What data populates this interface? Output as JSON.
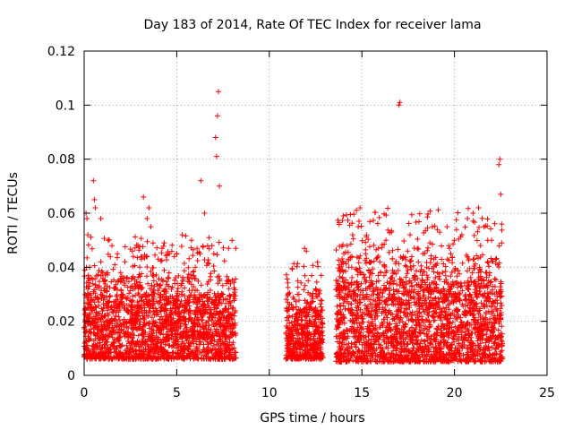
{
  "chart_data": {
    "type": "scatter",
    "title": "Day 183 of 2014, Rate Of TEC Index for receiver lama",
    "xlabel": "GPS time / hours",
    "ylabel": "ROTI / TECUs",
    "xlim": [
      0,
      25
    ],
    "ylim": [
      0,
      0.12
    ],
    "xticks": [
      0,
      5,
      10,
      15,
      20,
      25
    ],
    "xtick_labels": [
      "0",
      "5",
      "10",
      "15",
      "20",
      "25"
    ],
    "yticks": [
      0,
      0.02,
      0.04,
      0.06,
      0.08,
      0.1,
      0.12
    ],
    "ytick_labels": [
      "0",
      "0.02",
      "0.04",
      "0.06",
      "0.08",
      "0.1",
      "0.12"
    ],
    "grid": true,
    "marker": "+",
    "marker_color": "#ff0000",
    "data_segments": [
      {
        "x_range": [
          0.0,
          8.2
        ],
        "typical_y": [
          0.006,
          0.03
        ]
      },
      {
        "x_range": [
          10.9,
          12.9
        ],
        "typical_y": [
          0.006,
          0.025
        ]
      },
      {
        "x_range": [
          13.6,
          22.6
        ],
        "typical_y": [
          0.005,
          0.035
        ]
      }
    ],
    "series": [
      {
        "name": "ROTI",
        "x": [
          0.1,
          0.15,
          0.2,
          0.5,
          0.55,
          0.6,
          0.9,
          1.3,
          1.5,
          1.8,
          2.2,
          2.6,
          3.2,
          3.4,
          3.5,
          3.6,
          4.2,
          4.6,
          5.3,
          5.8,
          6.1,
          6.3,
          6.5,
          6.9,
          7.1,
          7.15,
          7.2,
          7.25,
          7.3,
          7.8,
          0.3,
          1.0,
          2.0,
          3.0,
          4.0,
          5.0,
          6.0,
          7.0,
          11.0,
          11.3,
          11.6,
          11.9,
          12.0,
          12.1,
          12.5,
          12.8,
          14.0,
          14.2,
          14.5,
          14.8,
          14.9,
          15.2,
          15.5,
          15.9,
          16.3,
          16.6,
          17.0,
          17.05,
          17.6,
          18.0,
          18.3,
          18.8,
          19.2,
          19.6,
          20.0,
          20.4,
          20.7,
          21.0,
          21.3,
          21.6,
          22.0,
          22.4,
          22.45,
          22.5,
          22.55,
          14.3,
          16.0,
          18.5,
          19.8,
          21.8
        ],
        "y": [
          0.06,
          0.058,
          0.052,
          0.072,
          0.065,
          0.062,
          0.058,
          0.05,
          0.048,
          0.045,
          0.042,
          0.046,
          0.066,
          0.058,
          0.062,
          0.055,
          0.047,
          0.045,
          0.052,
          0.05,
          0.047,
          0.072,
          0.06,
          0.048,
          0.088,
          0.081,
          0.096,
          0.105,
          0.07,
          0.047,
          0.04,
          0.038,
          0.035,
          0.04,
          0.043,
          0.045,
          0.04,
          0.045,
          0.027,
          0.025,
          0.03,
          0.047,
          0.046,
          0.035,
          0.032,
          0.037,
          0.059,
          0.048,
          0.052,
          0.055,
          0.062,
          0.045,
          0.042,
          0.047,
          0.05,
          0.053,
          0.1,
          0.101,
          0.052,
          0.047,
          0.045,
          0.055,
          0.053,
          0.055,
          0.05,
          0.052,
          0.058,
          0.06,
          0.062,
          0.055,
          0.05,
          0.078,
          0.08,
          0.067,
          0.056,
          0.04,
          0.038,
          0.04,
          0.045,
          0.05
        ]
      }
    ]
  }
}
